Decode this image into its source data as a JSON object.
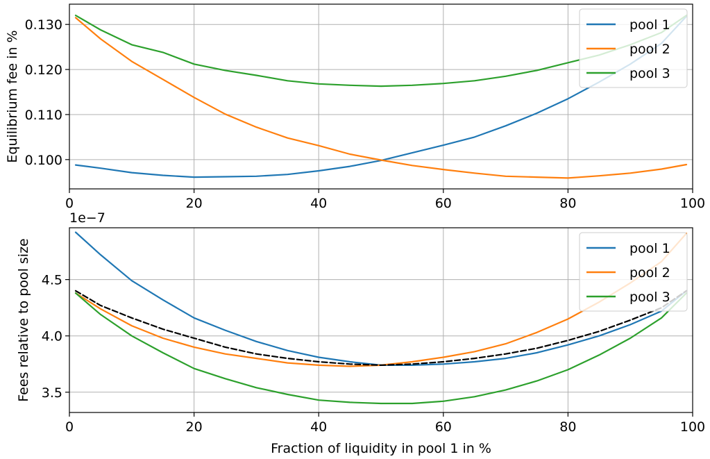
{
  "chart_data": [
    {
      "type": "line",
      "title": "",
      "xlabel": "",
      "ylabel": "Equilibrium fee in %",
      "xlim": [
        0,
        100
      ],
      "ylim": [
        0.0935,
        0.1345
      ],
      "xticks": [
        0,
        20,
        40,
        60,
        80,
        100
      ],
      "xtick_labels": [
        "0",
        "20",
        "40",
        "60",
        "80",
        "100"
      ],
      "yticks": [
        0.1,
        0.11,
        0.12,
        0.13
      ],
      "ytick_labels": [
        "0.100",
        "0.110",
        "0.120",
        "0.130"
      ],
      "grid": true,
      "legend": "top-right",
      "x": [
        1,
        5,
        10,
        15,
        20,
        25,
        30,
        35,
        40,
        45,
        50,
        55,
        60,
        65,
        70,
        75,
        80,
        85,
        90,
        95,
        99
      ],
      "series": [
        {
          "name": "pool 1",
          "color": "#1f77b4",
          "dashed": false,
          "values": [
            0.0988,
            0.0981,
            0.0971,
            0.0965,
            0.0961,
            0.0962,
            0.0963,
            0.0967,
            0.0975,
            0.0985,
            0.0998,
            0.1015,
            0.1032,
            0.105,
            0.1075,
            0.1103,
            0.1135,
            0.1172,
            0.1212,
            0.1258,
            0.1318
          ]
        },
        {
          "name": "pool 2",
          "color": "#ff7f0e",
          "dashed": false,
          "values": [
            0.1315,
            0.1268,
            0.1218,
            0.1178,
            0.1138,
            0.1101,
            0.1072,
            0.1048,
            0.1031,
            0.1012,
            0.0999,
            0.0987,
            0.0978,
            0.097,
            0.0963,
            0.0961,
            0.0959,
            0.0964,
            0.097,
            0.0979,
            0.0989
          ]
        },
        {
          "name": "pool 3",
          "color": "#2ca02c",
          "dashed": false,
          "values": [
            0.132,
            0.1288,
            0.1255,
            0.1238,
            0.1212,
            0.1198,
            0.1187,
            0.1175,
            0.1168,
            0.1165,
            0.1163,
            0.1165,
            0.1169,
            0.1175,
            0.1185,
            0.1198,
            0.1215,
            0.1232,
            0.1255,
            0.1282,
            0.132
          ]
        }
      ]
    },
    {
      "type": "line",
      "title": "",
      "xlabel": "Fraction of liquidity in pool 1 in %",
      "ylabel": "Fees relative to pool size",
      "offset_label": "1e−7",
      "xlim": [
        0,
        100
      ],
      "ylim": [
        3.32,
        4.96
      ],
      "xticks": [
        0,
        20,
        40,
        60,
        80,
        100
      ],
      "xtick_labels": [
        "0",
        "20",
        "40",
        "60",
        "80",
        "100"
      ],
      "yticks": [
        3.5,
        4.0,
        4.5
      ],
      "ytick_labels": [
        "3.5",
        "4.0",
        "4.5"
      ],
      "grid": true,
      "legend": "top-right",
      "x": [
        1,
        5,
        10,
        15,
        20,
        25,
        30,
        35,
        40,
        45,
        50,
        55,
        60,
        65,
        70,
        75,
        80,
        85,
        90,
        95,
        99
      ],
      "series": [
        {
          "name": "pool 1",
          "color": "#1f77b4",
          "dashed": false,
          "values": [
            4.92,
            4.72,
            4.49,
            4.32,
            4.16,
            4.05,
            3.95,
            3.87,
            3.81,
            3.77,
            3.74,
            3.74,
            3.75,
            3.77,
            3.8,
            3.85,
            3.92,
            4.0,
            4.1,
            4.22,
            4.4
          ]
        },
        {
          "name": "pool 2",
          "color": "#ff7f0e",
          "dashed": false,
          "values": [
            4.38,
            4.24,
            4.09,
            3.98,
            3.9,
            3.84,
            3.8,
            3.76,
            3.74,
            3.73,
            3.74,
            3.77,
            3.81,
            3.86,
            3.93,
            4.03,
            4.15,
            4.3,
            4.47,
            4.66,
            4.91
          ]
        },
        {
          "name": "pool 3",
          "color": "#2ca02c",
          "dashed": false,
          "values": [
            4.38,
            4.19,
            4.0,
            3.85,
            3.71,
            3.62,
            3.54,
            3.48,
            3.43,
            3.41,
            3.4,
            3.4,
            3.42,
            3.46,
            3.52,
            3.6,
            3.7,
            3.83,
            3.98,
            4.16,
            4.38
          ]
        },
        {
          "color": "#000000",
          "dashed": true,
          "values": [
            4.4,
            4.27,
            4.16,
            4.06,
            3.98,
            3.9,
            3.84,
            3.8,
            3.77,
            3.75,
            3.74,
            3.75,
            3.77,
            3.8,
            3.84,
            3.89,
            3.96,
            4.04,
            4.14,
            4.25,
            4.4
          ]
        }
      ]
    }
  ]
}
